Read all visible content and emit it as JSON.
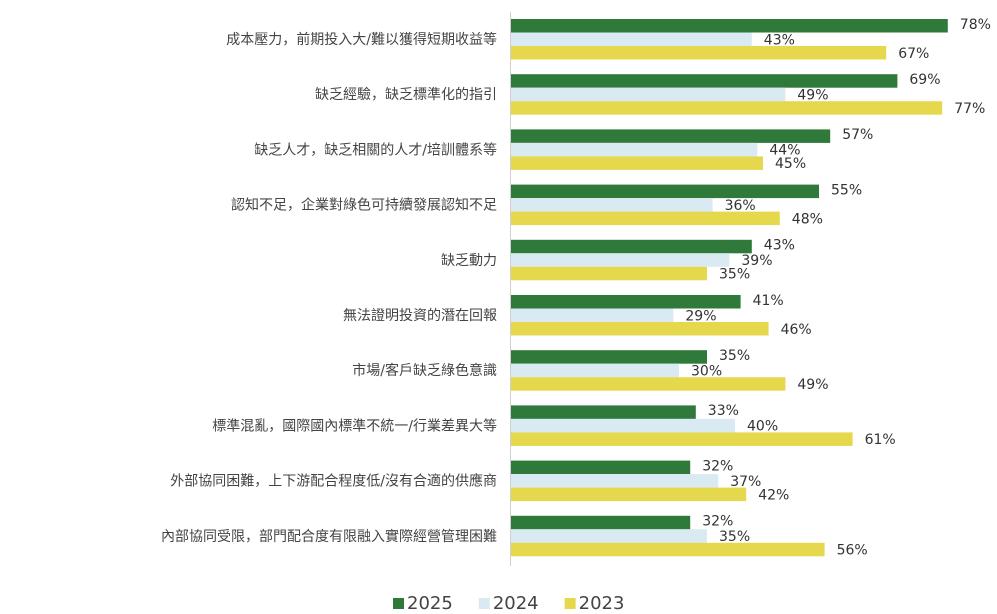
{
  "chart_data": {
    "type": "bar",
    "orientation": "horizontal",
    "categories": [
      "成本壓力，前期投入大/難以獲得短期收益等",
      "缺乏經驗，缺乏標準化的指引",
      "缺乏人才，缺乏相關的人才/培訓體系等",
      "認知不足，企業對綠色可持續發展認知不足",
      "缺乏動力",
      "無法證明投資的潛在回報",
      "市場/客戶缺乏綠色意識",
      "標準混亂，國際國內標準不統一/行業差異大等",
      "外部協同困難，上下游配合程度低/沒有合適的供應商",
      "內部協同受限，部門配合度有限融入實際經營管理困難"
    ],
    "series": [
      {
        "name": "2025",
        "color": "#2f7a3a",
        "values": [
          78,
          69,
          57,
          55,
          43,
          41,
          35,
          33,
          32,
          32
        ],
        "value_labels": [
          "78%",
          "69%",
          "57%",
          "55%",
          "43%",
          "41%",
          "35%",
          "33%",
          "32%",
          "32%"
        ]
      },
      {
        "name": "2024",
        "color": "#daeaf2",
        "values": [
          43,
          49,
          44,
          36,
          39,
          29,
          30,
          40,
          37,
          35
        ],
        "value_labels": [
          "43%",
          "49%",
          "44%",
          "36%",
          "39%",
          "29%",
          "30%",
          "40%",
          "37%",
          "35%"
        ]
      },
      {
        "name": "2023",
        "color": "#e6d84c",
        "values": [
          67,
          77,
          45,
          48,
          35,
          46,
          49,
          61,
          42,
          56
        ],
        "value_labels": [
          "67%",
          "77%",
          "45%",
          "48%",
          "35%",
          "46%",
          "49%",
          "61%",
          "42%",
          "56%"
        ]
      }
    ],
    "legend": "bottom"
  }
}
